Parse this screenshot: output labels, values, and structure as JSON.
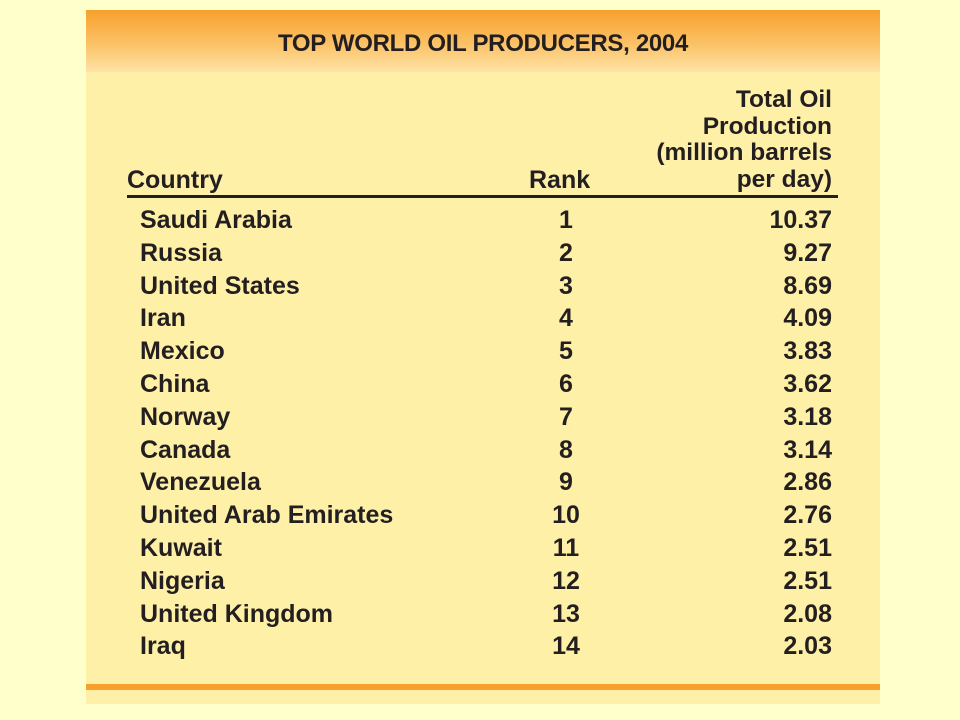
{
  "title": "TOP WORLD OIL PRODUCERS, 2004",
  "headers": {
    "country": "Country",
    "rank": "Rank",
    "production_lines": [
      "Total Oil",
      "Production",
      "(million barrels",
      "per day)"
    ]
  },
  "rows": [
    {
      "country": "Saudi Arabia",
      "rank": "1",
      "production": "10.37"
    },
    {
      "country": "Russia",
      "rank": "2",
      "production": "9.27"
    },
    {
      "country": "United States",
      "rank": "3",
      "production": "8.69"
    },
    {
      "country": "Iran",
      "rank": "4",
      "production": "4.09"
    },
    {
      "country": "Mexico",
      "rank": "5",
      "production": "3.83"
    },
    {
      "country": "China",
      "rank": "6",
      "production": "3.62"
    },
    {
      "country": "Norway",
      "rank": "7",
      "production": "3.18"
    },
    {
      "country": "Canada",
      "rank": "8",
      "production": "3.14"
    },
    {
      "country": "Venezuela",
      "rank": "9",
      "production": "2.86"
    },
    {
      "country": "United Arab Emirates",
      "rank": "10",
      "production": "2.76"
    },
    {
      "country": "Kuwait",
      "rank": "11",
      "production": "2.51"
    },
    {
      "country": "Nigeria",
      "rank": "12",
      "production": "2.51"
    },
    {
      "country": "United Kingdom",
      "rank": "13",
      "production": "2.08"
    },
    {
      "country": "Iraq",
      "rank": "14",
      "production": "2.03"
    }
  ],
  "colors": {
    "page_background": "#ffffcc",
    "panel_background": "#fff0a8",
    "title_bar": "#f7a02c",
    "text": "#231f20"
  }
}
